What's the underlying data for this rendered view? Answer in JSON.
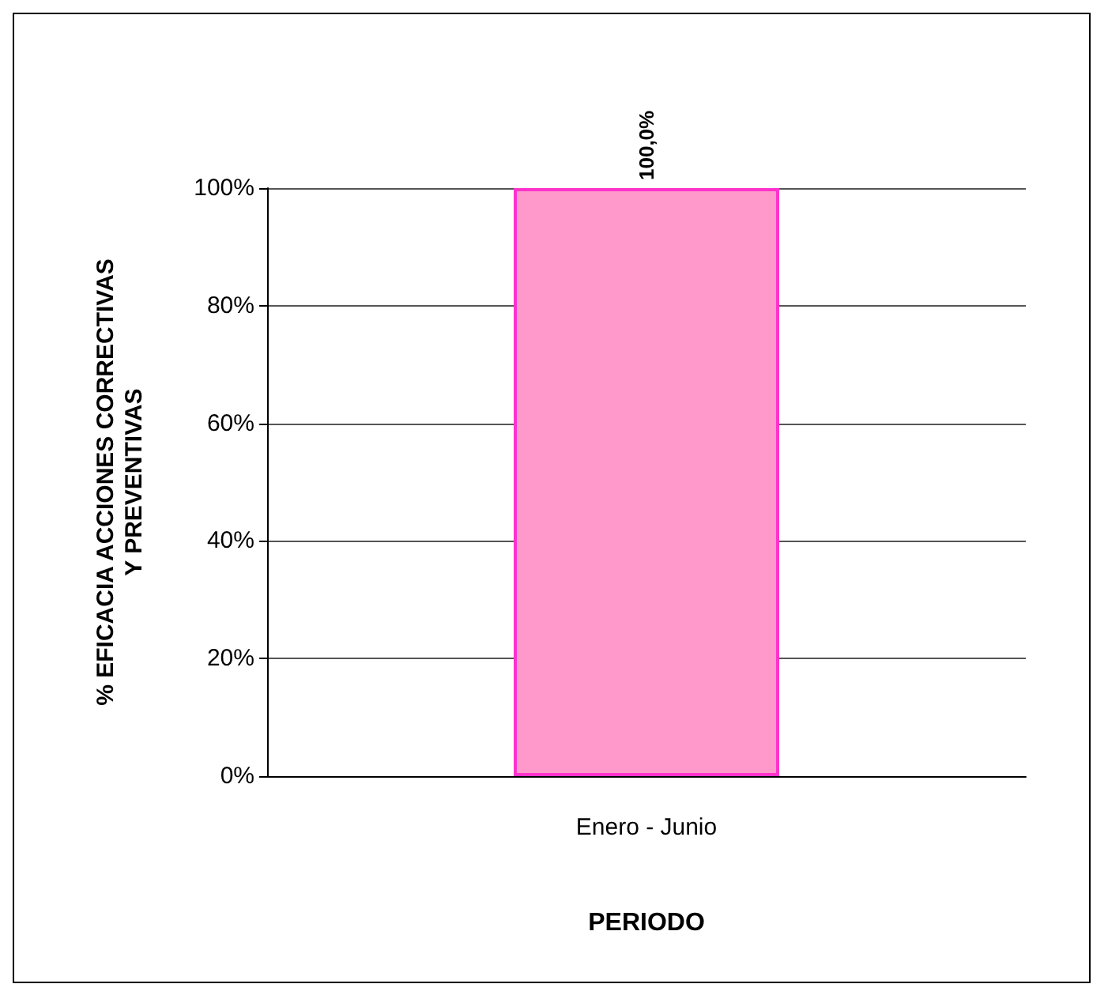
{
  "chart_data": {
    "type": "bar",
    "xlabel": "PERIODO",
    "ylabel": "% EFICACIA ACCIONES CORRECTIVAS\nY PREVENTIVAS",
    "categories": [
      "Enero - Junio"
    ],
    "values": [
      100
    ],
    "color": "#ff99cc",
    "value_labels": [
      "100,0%"
    ],
    "ylim": [
      0,
      100
    ],
    "yticks": [
      {
        "value": 0,
        "label": "0%"
      },
      {
        "value": 20,
        "label": "20%"
      },
      {
        "value": 40,
        "label": "40%"
      },
      {
        "value": 60,
        "label": "60%"
      },
      {
        "value": 80,
        "label": "80%"
      },
      {
        "value": 100,
        "label": "100%"
      }
    ],
    "grid": "y"
  }
}
